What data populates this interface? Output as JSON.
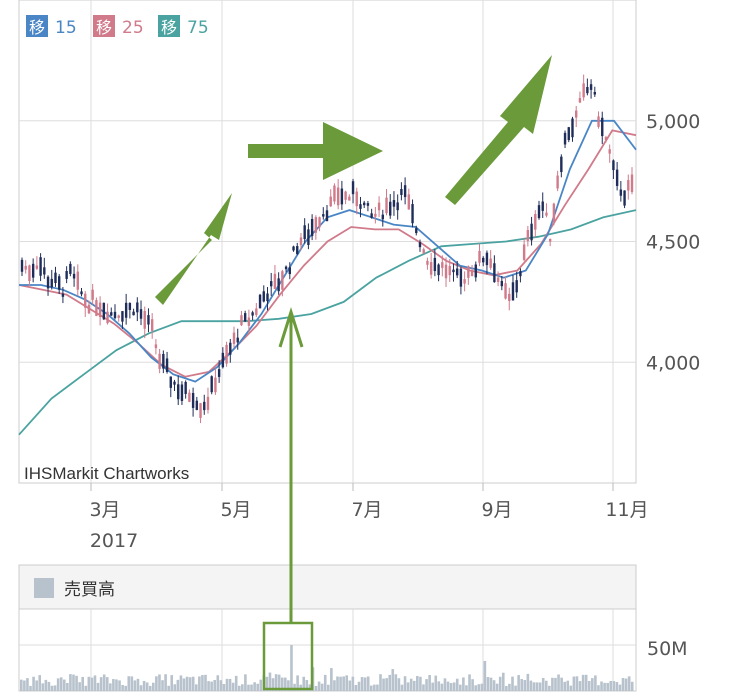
{
  "chart_data": [
    {
      "type": "candlestick",
      "watermark": "IHSMarkit Chartworks",
      "legend": [
        {
          "label": "移",
          "period": "15",
          "color": "#4a86c5"
        },
        {
          "label": "移",
          "period": "25",
          "color": "#d07a8a"
        },
        {
          "label": "移",
          "period": "75",
          "color": "#4aa3a0"
        }
      ],
      "x_ticks": [
        {
          "label": "3月",
          "sub": "2017"
        },
        {
          "label": "5月",
          "sub": ""
        },
        {
          "label": "7月",
          "sub": ""
        },
        {
          "label": "9月",
          "sub": ""
        },
        {
          "label": "11月",
          "sub": ""
        }
      ],
      "y_ticks": [
        "5,000",
        "4,500",
        "4,000"
      ],
      "ylim": [
        3500,
        5500
      ],
      "grid": true,
      "legend_placement": "top-left",
      "colors": {
        "up": "#d07a8a",
        "down": "#1f2d5a",
        "ma15": "#4a86c5",
        "ma25": "#d07a8a",
        "ma75": "#4aa3a0",
        "annotation": "#6a9a3a"
      },
      "ohlc_path": [
        4400,
        4380,
        4420,
        4350,
        4330,
        4300,
        4370,
        4300,
        4250,
        4250,
        4230,
        4200,
        4210,
        4220,
        4230,
        4180,
        4130,
        4000,
        3950,
        3900,
        3870,
        3870,
        3820,
        3850,
        3950,
        4010,
        4080,
        4150,
        4180,
        4230,
        4290,
        4310,
        4350,
        4410,
        4500,
        4520,
        4580,
        4620,
        4650,
        4700,
        4680,
        4700,
        4650,
        4600,
        4620,
        4650,
        4670,
        4700,
        4600,
        4500,
        4420,
        4400,
        4390,
        4350,
        4340,
        4380,
        4400,
        4450,
        4400,
        4300,
        4250,
        4340,
        4480,
        4600,
        4650,
        4520,
        4800,
        4950,
        5000,
        5100,
        5150,
        5000,
        4900,
        4750,
        4700,
        4720
      ],
      "moving_averages": {
        "ma15": [
          4320,
          4320,
          4300,
          4260,
          4200,
          4120,
          4020,
          3950,
          3920,
          3980,
          4080,
          4200,
          4350,
          4500,
          4600,
          4630,
          4600,
          4570,
          4560,
          4480,
          4400,
          4380,
          4350,
          4380,
          4530,
          4800,
          5000,
          5000,
          4880
        ],
        "ma25": [
          4320,
          4300,
          4280,
          4220,
          4160,
          4080,
          3990,
          3940,
          3960,
          4050,
          4150,
          4280,
          4400,
          4500,
          4560,
          4550,
          4550,
          4490,
          4420,
          4380,
          4360,
          4380,
          4490,
          4650,
          4800,
          4960,
          4940
        ],
        "ma75": [
          3700,
          3850,
          3950,
          4050,
          4120,
          4170,
          4170,
          4170,
          4180,
          4200,
          4250,
          4350,
          4420,
          4480,
          4490,
          4500,
          4520,
          4550,
          4600,
          4630
        ]
      },
      "annotations": [
        "up-arrow",
        "right-arrow",
        "up-arrow",
        "vertical-arrow-up",
        "volume-highlight-box"
      ]
    },
    {
      "type": "bar",
      "title": "売買高",
      "y_ticks": [
        "50M"
      ],
      "values_profile": "daily volume (mostly 5-15M, spike ~60M in June)",
      "color": "#b7c2cc"
    }
  ]
}
